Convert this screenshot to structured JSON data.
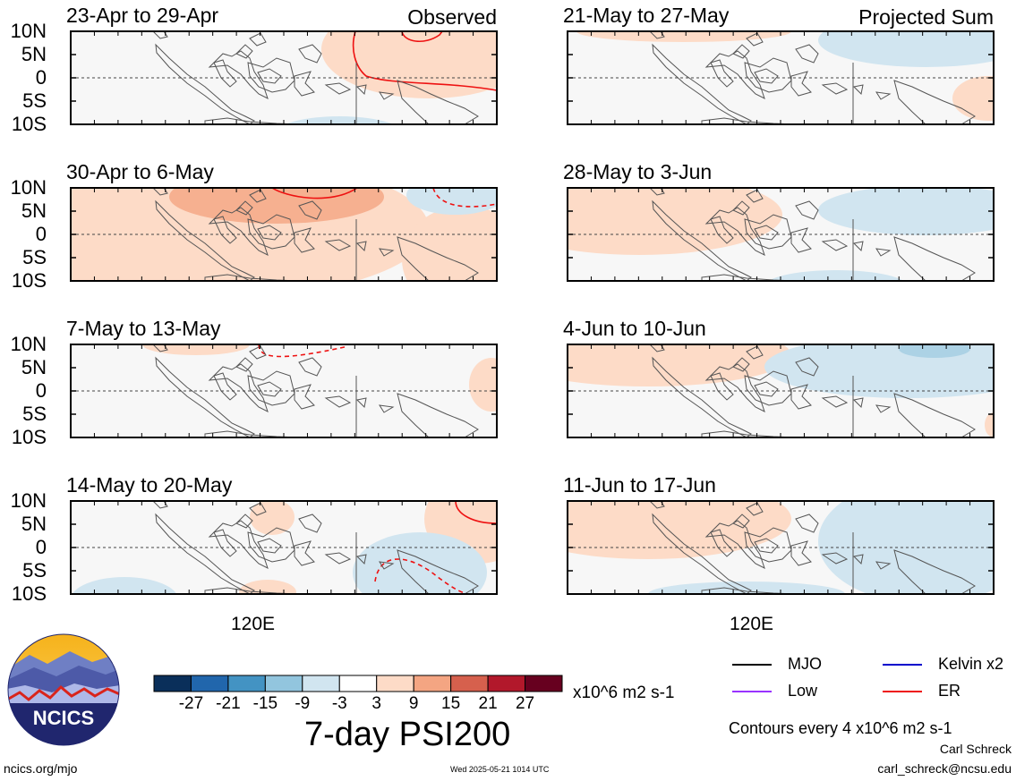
{
  "panels": [
    {
      "title": "23-Apr to 29-Apr",
      "tag": "Observed"
    },
    {
      "title": "30-Apr to 6-May",
      "tag": ""
    },
    {
      "title": "7-May to 13-May",
      "tag": ""
    },
    {
      "title": "14-May to 20-May",
      "tag": ""
    },
    {
      "title": "21-May to 27-May",
      "tag": "Projected Sum"
    },
    {
      "title": "28-May to 3-Jun",
      "tag": ""
    },
    {
      "title": "4-Jun to 10-Jun",
      "tag": ""
    },
    {
      "title": "11-Jun to 17-Jun",
      "tag": ""
    }
  ],
  "lat_labels": [
    "10N",
    "5N",
    "0",
    "5S",
    "10S"
  ],
  "lon_label": "120E",
  "colorbar": {
    "colors": [
      "#0a2f5a",
      "#2166ac",
      "#4393c3",
      "#92c5de",
      "#d1e5f0",
      "#ffffff",
      "#fddbc7",
      "#f4a582",
      "#d6604d",
      "#b2182b",
      "#67001f"
    ],
    "ticks": [
      "-27",
      "-21",
      "-15",
      "-9",
      "-3",
      "3",
      "9",
      "15",
      "21",
      "27"
    ],
    "units": "x10^6 m2 s-1"
  },
  "main_title": "7-day PSI200",
  "legend": [
    {
      "label": "MJO",
      "color": "#000000"
    },
    {
      "label": "Kelvin x2",
      "color": "#0000cc"
    },
    {
      "label": "Low",
      "color": "#9933ff"
    },
    {
      "label": "ER",
      "color": "#ee1111"
    }
  ],
  "contour_note": "Contours every 4 x10^6 m2 s-1",
  "author": "Carl Schreck",
  "email": "carl_schreck@ncsu.edu",
  "url": "ncics.org/mjo",
  "timestamp": "Wed 2025-05-21 1014 UTC",
  "logo_text": "NCICS",
  "chart_data": {
    "type": "heatmap",
    "title": "7-day PSI200",
    "units": "x10^6 m2 s-1",
    "ylim": [
      "10S",
      "10N"
    ],
    "ytick_labels": [
      "10N",
      "5N",
      "0",
      "5S",
      "10S"
    ],
    "xtick_labels": [
      "120E"
    ],
    "color_levels": [
      -27,
      -21,
      -15,
      -9,
      -3,
      3,
      9,
      15,
      21,
      27
    ],
    "panels": [
      {
        "period": "23-Apr to 29-Apr",
        "kind": "Observed"
      },
      {
        "period": "30-Apr to 6-May",
        "kind": "Observed"
      },
      {
        "period": "7-May to 13-May",
        "kind": "Observed"
      },
      {
        "period": "14-May to 20-May",
        "kind": "Observed"
      },
      {
        "period": "21-May to 27-May",
        "kind": "Projected Sum"
      },
      {
        "period": "28-May to 3-Jun",
        "kind": "Projected Sum"
      },
      {
        "period": "4-Jun to 10-Jun",
        "kind": "Projected Sum"
      },
      {
        "period": "11-Jun to 17-Jun",
        "kind": "Projected Sum"
      }
    ],
    "contour_interval": 4,
    "legend": [
      "MJO",
      "Kelvin x2",
      "Low",
      "ER"
    ]
  }
}
